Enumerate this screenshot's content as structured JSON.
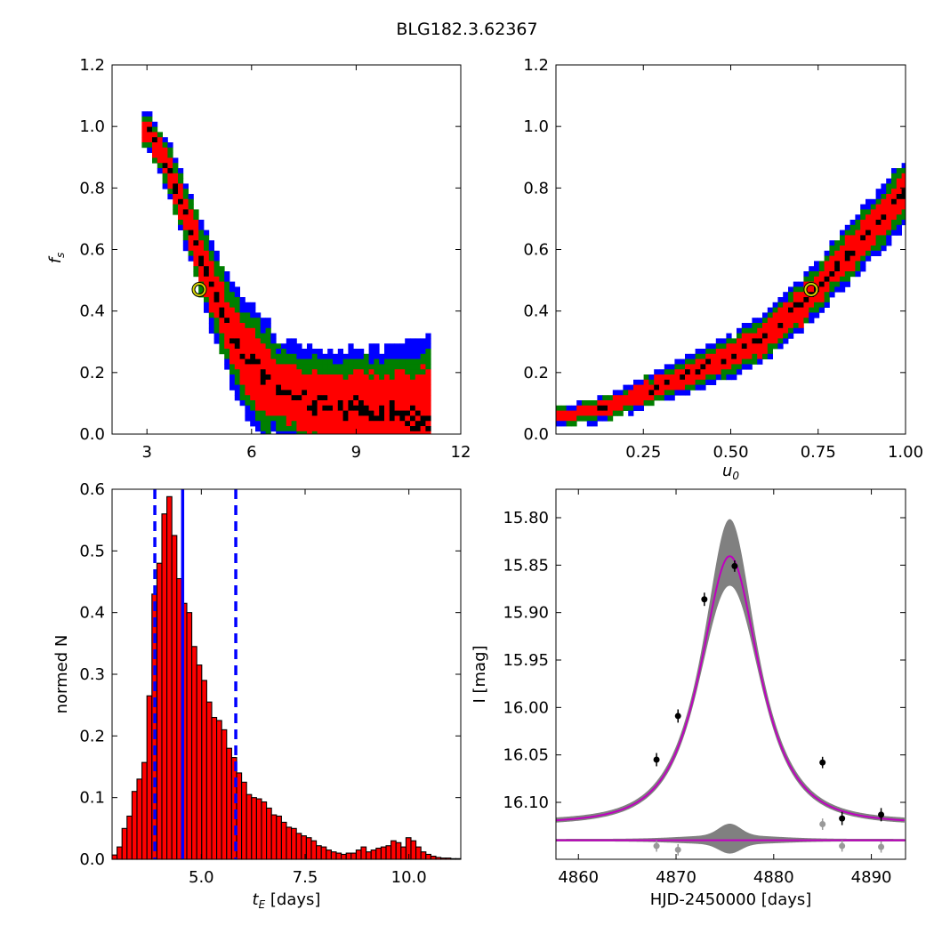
{
  "figure": {
    "title": "BLG182.3.62367"
  },
  "chart_data": [
    {
      "id": "fs_vs_tE",
      "type": "heatmap",
      "xlabel": "",
      "ylabel": "f_s",
      "xlim": [
        2,
        12
      ],
      "ylim": [
        0,
        1.2
      ],
      "xticks": [
        3,
        6,
        9,
        12
      ],
      "yticks": [
        0.0,
        0.2,
        0.4,
        0.6,
        0.8,
        1.0,
        1.2
      ],
      "levels": [
        "blue",
        "green",
        "red",
        "black"
      ],
      "level_colors": [
        "#0000ff",
        "#007f00",
        "#ff0000",
        "#000000"
      ],
      "ridge": [
        [
          3.0,
          0.98
        ],
        [
          3.3,
          0.92
        ],
        [
          3.6,
          0.85
        ],
        [
          3.9,
          0.76
        ],
        [
          4.2,
          0.66
        ],
        [
          4.5,
          0.56
        ],
        [
          4.8,
          0.47
        ],
        [
          5.1,
          0.39
        ],
        [
          5.4,
          0.31
        ],
        [
          5.8,
          0.24
        ],
        [
          6.2,
          0.19
        ],
        [
          6.7,
          0.15
        ],
        [
          7.2,
          0.12
        ],
        [
          7.8,
          0.1
        ],
        [
          8.5,
          0.085
        ],
        [
          9.2,
          0.075
        ],
        [
          10.0,
          0.065
        ],
        [
          10.8,
          0.058
        ]
      ],
      "best_fit": {
        "x": 4.5,
        "y": 0.47
      }
    },
    {
      "id": "fs_vs_u0",
      "type": "heatmap",
      "xlabel": "u_0",
      "ylabel": "",
      "xlim": [
        0,
        1
      ],
      "ylim": [
        0,
        1.2
      ],
      "xticks": [
        0.25,
        0.5,
        0.75,
        1.0
      ],
      "xtick_labels": [
        "0.25",
        "0.50",
        "0.75",
        "1.00"
      ],
      "yticks": [
        0.0,
        0.2,
        0.4,
        0.6,
        0.8,
        1.0,
        1.2
      ],
      "levels": [
        "blue",
        "green",
        "red",
        "black"
      ],
      "level_colors": [
        "#0000ff",
        "#007f00",
        "#ff0000",
        "#000000"
      ],
      "ridge": [
        [
          0.0,
          0.06
        ],
        [
          0.1,
          0.07
        ],
        [
          0.2,
          0.11
        ],
        [
          0.3,
          0.16
        ],
        [
          0.4,
          0.21
        ],
        [
          0.5,
          0.26
        ],
        [
          0.6,
          0.32
        ],
        [
          0.7,
          0.42
        ],
        [
          0.8,
          0.55
        ],
        [
          0.9,
          0.67
        ],
        [
          1.0,
          0.8
        ]
      ],
      "best_fit": {
        "x": 0.73,
        "y": 0.47
      }
    },
    {
      "id": "tE_hist",
      "type": "bar",
      "xlabel": "t_E [days]",
      "ylabel": "normed N",
      "xlim": [
        2.85,
        11.25
      ],
      "ylim": [
        0,
        0.6
      ],
      "xticks": [
        5.0,
        7.5,
        10.0
      ],
      "xtick_labels": [
        "5.0",
        "7.5",
        "10.0"
      ],
      "yticks": [
        0.0,
        0.1,
        0.2,
        0.3,
        0.4,
        0.5,
        0.6
      ],
      "bin_edges_start": 2.85,
      "bin_width": 0.12,
      "values": [
        0.007,
        0.02,
        0.05,
        0.07,
        0.11,
        0.13,
        0.157,
        0.265,
        0.43,
        0.48,
        0.56,
        0.588,
        0.525,
        0.455,
        0.415,
        0.4,
        0.345,
        0.315,
        0.29,
        0.255,
        0.23,
        0.225,
        0.21,
        0.18,
        0.165,
        0.14,
        0.125,
        0.105,
        0.1,
        0.098,
        0.093,
        0.083,
        0.072,
        0.07,
        0.06,
        0.052,
        0.05,
        0.042,
        0.038,
        0.035,
        0.03,
        0.022,
        0.02,
        0.015,
        0.012,
        0.01,
        0.008,
        0.01,
        0.01,
        0.015,
        0.02,
        0.012,
        0.015,
        0.018,
        0.02,
        0.022,
        0.03,
        0.027,
        0.02,
        0.035,
        0.03,
        0.02,
        0.012,
        0.008,
        0.005,
        0.003,
        0.002,
        0.002,
        0.001,
        0.001
      ],
      "bar_color": "#ff0000",
      "median": 4.55,
      "interval": [
        3.88,
        5.83
      ],
      "line_color": "#0000ff"
    },
    {
      "id": "lightcurve",
      "type": "line",
      "xlabel": "HJD-2450000 [days]",
      "ylabel": "I [mag]",
      "xlim": [
        4857.7,
        4893.5
      ],
      "ylim": [
        16.16,
        15.77
      ],
      "xticks": [
        4860,
        4870,
        4880,
        4890
      ],
      "yticks": [
        15.8,
        15.85,
        15.9,
        15.95,
        16.0,
        16.05,
        16.1
      ],
      "ytick_labels": [
        "15.80",
        "15.85",
        "15.90",
        "15.95",
        "16.00",
        "16.05",
        "16.10"
      ],
      "model": {
        "t0": 4875.5,
        "tE": 4.5,
        "u0": 0.73,
        "fs": 0.47,
        "baseline": 16.122,
        "color": "#bf00bf"
      },
      "band_color": "#808080",
      "data": [
        {
          "t": 4868.0,
          "mag": 16.055,
          "err": 0.007
        },
        {
          "t": 4870.2,
          "mag": 16.009,
          "err": 0.007
        },
        {
          "t": 4872.9,
          "mag": 15.886,
          "err": 0.007
        },
        {
          "t": 4876.0,
          "mag": 15.851,
          "err": 0.006
        },
        {
          "t": 4885.0,
          "mag": 16.058,
          "err": 0.006
        },
        {
          "t": 4887.0,
          "mag": 16.117,
          "err": 0.007
        },
        {
          "t": 4891.0,
          "mag": 16.113,
          "err": 0.007
        }
      ],
      "residual_zero": 16.14,
      "residual_points": [
        {
          "t": 4868.0,
          "mag": 16.146
        },
        {
          "t": 4870.2,
          "mag": 16.15
        },
        {
          "t": 4885.0,
          "mag": 16.123
        },
        {
          "t": 4887.0,
          "mag": 16.146
        },
        {
          "t": 4891.0,
          "mag": 16.147
        }
      ]
    }
  ]
}
